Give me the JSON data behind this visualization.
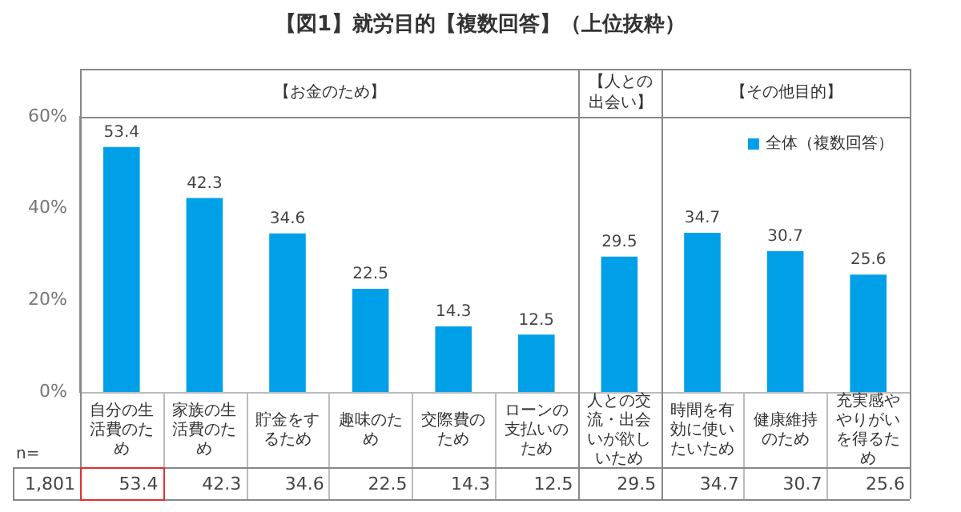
{
  "chart_data": {
    "type": "bar",
    "title": "【図1】就労目的【複数回答】（上位抜粋）",
    "categories": [
      "自分の生活費のため",
      "家族の生活費のため",
      "貯金をするため",
      "趣味のため",
      "交際費のため",
      "ローンの支払いのため",
      "人との交流・出会いが欲しいため",
      "時間を有効に使いたいため",
      "健康維持のため",
      "充実感ややりがいを得るため"
    ],
    "series": [
      {
        "name": "全体（複数回答）",
        "color": "#00a0e9",
        "values": [
          53.4,
          42.3,
          34.6,
          22.5,
          14.3,
          12.5,
          29.5,
          34.7,
          30.7,
          25.6
        ]
      }
    ],
    "ylim": [
      0,
      60
    ],
    "yticks": [
      {
        "value": 0,
        "label": "0%"
      },
      {
        "value": 20,
        "label": "20%"
      },
      {
        "value": 40,
        "label": "40%"
      },
      {
        "value": 60,
        "label": "60%"
      }
    ],
    "value_labels": [
      "53.4",
      "42.3",
      "34.6",
      "22.5",
      "14.3",
      "12.5",
      "29.5",
      "34.7",
      "30.7",
      "25.6"
    ],
    "annotations": [
      "n=",
      "1,801",
      "【お金のため】",
      "【人との出会い】",
      "【その他目的】"
    ],
    "data_labels": true,
    "grid": false,
    "legend": "top right"
  }
}
